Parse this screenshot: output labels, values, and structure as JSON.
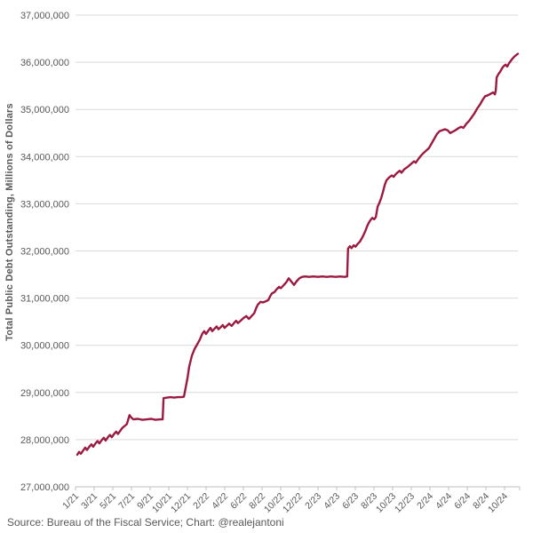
{
  "page": {
    "background": "#ffffff"
  },
  "source_caption": "Source: Bureau of the Fiscal Service; Chart: @realejantoni",
  "chart_data": {
    "type": "line",
    "title": "",
    "xlabel": "",
    "ylabel": "Total Public Debt Outstanding, Millions of Dollars",
    "ylim": [
      27000000,
      37000000
    ],
    "value_scale": 1000000,
    "grid": "horizontal-only",
    "legend": "none",
    "line_color": "#9B1B40",
    "grid_color": "#D9D9D9",
    "axis_color": "#BFBFBF",
    "text_color": "#595959",
    "y_tick_labels": [
      "37,000,000",
      "36,000,000",
      "35,000,000",
      "34,000,000",
      "33,000,000",
      "32,000,000",
      "31,000,000",
      "30,000,000",
      "29,000,000",
      "28,000,000",
      "27,000,000"
    ],
    "x_tick_labels": [
      "1/21",
      "3/21",
      "5/21",
      "7/21",
      "9/21",
      "10/21",
      "12/21",
      "2/22",
      "4/22",
      "6/22",
      "8/22",
      "10/22",
      "12/22",
      "2/23",
      "4/23",
      "6/23",
      "8/23",
      "10/23",
      "12/23",
      "2/24",
      "4/24",
      "6/24",
      "8/24",
      "10/24"
    ],
    "series": [
      {
        "name": "Total Public Debt Outstanding",
        "points": [
          [
            0.004,
            27.68
          ],
          [
            0.008,
            27.74
          ],
          [
            0.012,
            27.7
          ],
          [
            0.018,
            27.78
          ],
          [
            0.022,
            27.83
          ],
          [
            0.026,
            27.78
          ],
          [
            0.032,
            27.86
          ],
          [
            0.036,
            27.9
          ],
          [
            0.04,
            27.85
          ],
          [
            0.046,
            27.93
          ],
          [
            0.05,
            27.97
          ],
          [
            0.054,
            27.92
          ],
          [
            0.06,
            28.0
          ],
          [
            0.064,
            28.04
          ],
          [
            0.068,
            27.98
          ],
          [
            0.074,
            28.06
          ],
          [
            0.078,
            28.1
          ],
          [
            0.082,
            28.05
          ],
          [
            0.088,
            28.13
          ],
          [
            0.092,
            28.17
          ],
          [
            0.096,
            28.12
          ],
          [
            0.102,
            28.2
          ],
          [
            0.106,
            28.25
          ],
          [
            0.11,
            28.28
          ],
          [
            0.116,
            28.33
          ],
          [
            0.122,
            28.52
          ],
          [
            0.127,
            28.46
          ],
          [
            0.131,
            28.43
          ],
          [
            0.141,
            28.44
          ],
          [
            0.151,
            28.42
          ],
          [
            0.161,
            28.43
          ],
          [
            0.171,
            28.44
          ],
          [
            0.181,
            28.42
          ],
          [
            0.191,
            28.43
          ],
          [
            0.197,
            28.43
          ],
          [
            0.199,
            28.88
          ],
          [
            0.207,
            28.89
          ],
          [
            0.215,
            28.9
          ],
          [
            0.223,
            28.89
          ],
          [
            0.231,
            28.9
          ],
          [
            0.239,
            28.9
          ],
          [
            0.245,
            28.91
          ],
          [
            0.249,
            29.1
          ],
          [
            0.253,
            29.3
          ],
          [
            0.257,
            29.55
          ],
          [
            0.263,
            29.78
          ],
          [
            0.269,
            29.92
          ],
          [
            0.275,
            30.02
          ],
          [
            0.281,
            30.12
          ],
          [
            0.287,
            30.25
          ],
          [
            0.291,
            30.3
          ],
          [
            0.295,
            30.24
          ],
          [
            0.301,
            30.32
          ],
          [
            0.305,
            30.37
          ],
          [
            0.309,
            30.3
          ],
          [
            0.315,
            30.36
          ],
          [
            0.319,
            30.4
          ],
          [
            0.323,
            30.34
          ],
          [
            0.329,
            30.39
          ],
          [
            0.333,
            30.43
          ],
          [
            0.337,
            30.37
          ],
          [
            0.343,
            30.42
          ],
          [
            0.347,
            30.46
          ],
          [
            0.353,
            30.41
          ],
          [
            0.359,
            30.48
          ],
          [
            0.363,
            30.52
          ],
          [
            0.367,
            30.47
          ],
          [
            0.373,
            30.52
          ],
          [
            0.379,
            30.57
          ],
          [
            0.386,
            30.62
          ],
          [
            0.392,
            30.56
          ],
          [
            0.398,
            30.62
          ],
          [
            0.404,
            30.68
          ],
          [
            0.408,
            30.78
          ],
          [
            0.412,
            30.86
          ],
          [
            0.418,
            30.92
          ],
          [
            0.424,
            30.91
          ],
          [
            0.43,
            30.93
          ],
          [
            0.436,
            30.96
          ],
          [
            0.44,
            31.04
          ],
          [
            0.444,
            31.1
          ],
          [
            0.45,
            31.13
          ],
          [
            0.454,
            31.18
          ],
          [
            0.46,
            31.24
          ],
          [
            0.464,
            31.21
          ],
          [
            0.47,
            31.27
          ],
          [
            0.476,
            31.33
          ],
          [
            0.482,
            31.42
          ],
          [
            0.488,
            31.35
          ],
          [
            0.494,
            31.28
          ],
          [
            0.5,
            31.36
          ],
          [
            0.506,
            31.42
          ],
          [
            0.512,
            31.45
          ],
          [
            0.52,
            31.46
          ],
          [
            0.528,
            31.45
          ],
          [
            0.538,
            31.46
          ],
          [
            0.548,
            31.45
          ],
          [
            0.558,
            31.46
          ],
          [
            0.568,
            31.45
          ],
          [
            0.578,
            31.46
          ],
          [
            0.588,
            31.45
          ],
          [
            0.598,
            31.46
          ],
          [
            0.608,
            31.45
          ],
          [
            0.614,
            31.46
          ],
          [
            0.616,
            32.05
          ],
          [
            0.62,
            32.1
          ],
          [
            0.624,
            32.06
          ],
          [
            0.629,
            32.12
          ],
          [
            0.633,
            32.09
          ],
          [
            0.637,
            32.14
          ],
          [
            0.643,
            32.2
          ],
          [
            0.649,
            32.3
          ],
          [
            0.655,
            32.42
          ],
          [
            0.659,
            32.52
          ],
          [
            0.663,
            32.6
          ],
          [
            0.667,
            32.66
          ],
          [
            0.671,
            32.7
          ],
          [
            0.675,
            32.67
          ],
          [
            0.679,
            32.72
          ],
          [
            0.683,
            32.94
          ],
          [
            0.687,
            33.02
          ],
          [
            0.691,
            33.12
          ],
          [
            0.695,
            33.25
          ],
          [
            0.699,
            33.4
          ],
          [
            0.703,
            33.5
          ],
          [
            0.709,
            33.56
          ],
          [
            0.715,
            33.6
          ],
          [
            0.719,
            33.57
          ],
          [
            0.723,
            33.62
          ],
          [
            0.729,
            33.67
          ],
          [
            0.733,
            33.7
          ],
          [
            0.737,
            33.66
          ],
          [
            0.743,
            33.73
          ],
          [
            0.749,
            33.77
          ],
          [
            0.753,
            33.8
          ],
          [
            0.759,
            33.85
          ],
          [
            0.765,
            33.9
          ],
          [
            0.769,
            33.87
          ],
          [
            0.775,
            33.95
          ],
          [
            0.781,
            34.02
          ],
          [
            0.787,
            34.08
          ],
          [
            0.793,
            34.13
          ],
          [
            0.799,
            34.18
          ],
          [
            0.805,
            34.28
          ],
          [
            0.811,
            34.38
          ],
          [
            0.817,
            34.48
          ],
          [
            0.823,
            34.54
          ],
          [
            0.829,
            34.56
          ],
          [
            0.835,
            34.58
          ],
          [
            0.841,
            34.56
          ],
          [
            0.847,
            34.5
          ],
          [
            0.853,
            34.53
          ],
          [
            0.859,
            34.56
          ],
          [
            0.865,
            34.6
          ],
          [
            0.871,
            34.63
          ],
          [
            0.877,
            34.61
          ],
          [
            0.884,
            34.7
          ],
          [
            0.89,
            34.76
          ],
          [
            0.896,
            34.84
          ],
          [
            0.902,
            34.92
          ],
          [
            0.908,
            35.02
          ],
          [
            0.914,
            35.1
          ],
          [
            0.92,
            35.2
          ],
          [
            0.926,
            35.28
          ],
          [
            0.932,
            35.3
          ],
          [
            0.938,
            35.33
          ],
          [
            0.944,
            35.36
          ],
          [
            0.948,
            35.32
          ],
          [
            0.95,
            35.4
          ],
          [
            0.952,
            35.68
          ],
          [
            0.956,
            35.75
          ],
          [
            0.96,
            35.8
          ],
          [
            0.964,
            35.87
          ],
          [
            0.968,
            35.92
          ],
          [
            0.972,
            35.95
          ],
          [
            0.976,
            35.91
          ],
          [
            0.98,
            35.98
          ],
          [
            0.984,
            36.03
          ],
          [
            0.988,
            36.08
          ],
          [
            0.992,
            36.12
          ],
          [
            0.996,
            36.15
          ],
          [
            1.0,
            36.18
          ]
        ]
      }
    ]
  }
}
